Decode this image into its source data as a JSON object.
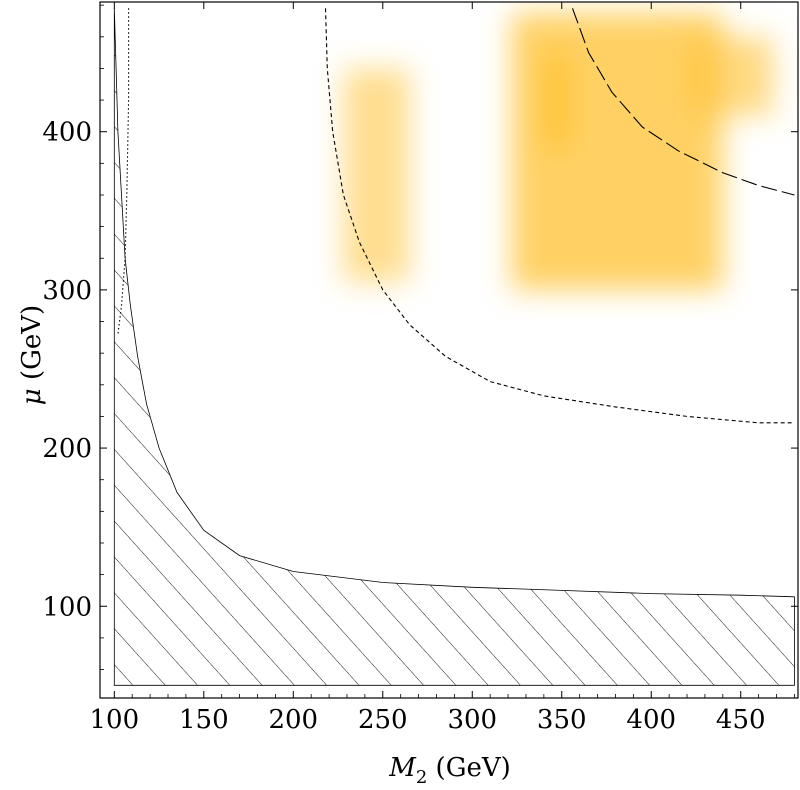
{
  "chart_data": {
    "type": "contour",
    "xlabel": {
      "main": "M",
      "sub": "2",
      "unit": " (GeV)"
    },
    "ylabel": {
      "main": "μ",
      "unit": " (GeV)"
    },
    "xlim": [
      92,
      482
    ],
    "ylim": [
      42,
      482
    ],
    "xticks": [
      100,
      150,
      200,
      250,
      300,
      350,
      400,
      450
    ],
    "yticks": [
      100,
      200,
      300,
      400
    ],
    "excluded_region": {
      "fill": "diagonal-hatch",
      "boundary": [
        [
          100,
          478
        ],
        [
          101,
          440
        ],
        [
          102,
          400
        ],
        [
          104,
          360
        ],
        [
          106,
          320
        ],
        [
          109,
          290
        ],
        [
          113,
          258
        ],
        [
          118,
          228
        ],
        [
          125,
          200
        ],
        [
          135,
          172
        ],
        [
          150,
          148
        ],
        [
          170,
          132
        ],
        [
          200,
          122
        ],
        [
          250,
          115
        ],
        [
          300,
          112
        ],
        [
          350,
          110
        ],
        [
          400,
          108
        ],
        [
          450,
          107
        ],
        [
          480,
          106
        ]
      ],
      "x_range": [
        100,
        480
      ],
      "y_min": 50
    },
    "dotted_curve": [
      [
        108,
        478
      ],
      [
        108,
        420
      ],
      [
        107,
        360
      ],
      [
        106,
        320
      ],
      [
        104,
        290
      ],
      [
        102,
        272
      ]
    ],
    "short_dashed_curve": [
      [
        218,
        478
      ],
      [
        219,
        440
      ],
      [
        222,
        400
      ],
      [
        228,
        360
      ],
      [
        237,
        330
      ],
      [
        250,
        300
      ],
      [
        265,
        278
      ],
      [
        285,
        258
      ],
      [
        310,
        242
      ],
      [
        340,
        233
      ],
      [
        380,
        226
      ],
      [
        420,
        220
      ],
      [
        460,
        216
      ],
      [
        480,
        216
      ]
    ],
    "long_dashed_curve": [
      [
        356,
        478
      ],
      [
        365,
        450
      ],
      [
        378,
        425
      ],
      [
        395,
        403
      ],
      [
        415,
        388
      ],
      [
        440,
        374
      ],
      [
        460,
        366
      ],
      [
        480,
        360
      ]
    ],
    "shaded_regions": [
      {
        "x": [
          228,
          265
        ],
        "y": [
          305,
          440
        ],
        "opacity": 0.55
      },
      {
        "x": [
          322,
          440
        ],
        "y": [
          300,
          475
        ],
        "opacity": 0.75
      },
      {
        "x": [
          340,
          355
        ],
        "y": [
          390,
          450
        ],
        "opacity": 0.9
      },
      {
        "x": [
          420,
          468
        ],
        "y": [
          410,
          460
        ],
        "opacity": 0.6
      }
    ],
    "colors": {
      "shade": "#ffc233",
      "frame": "#000000"
    }
  }
}
